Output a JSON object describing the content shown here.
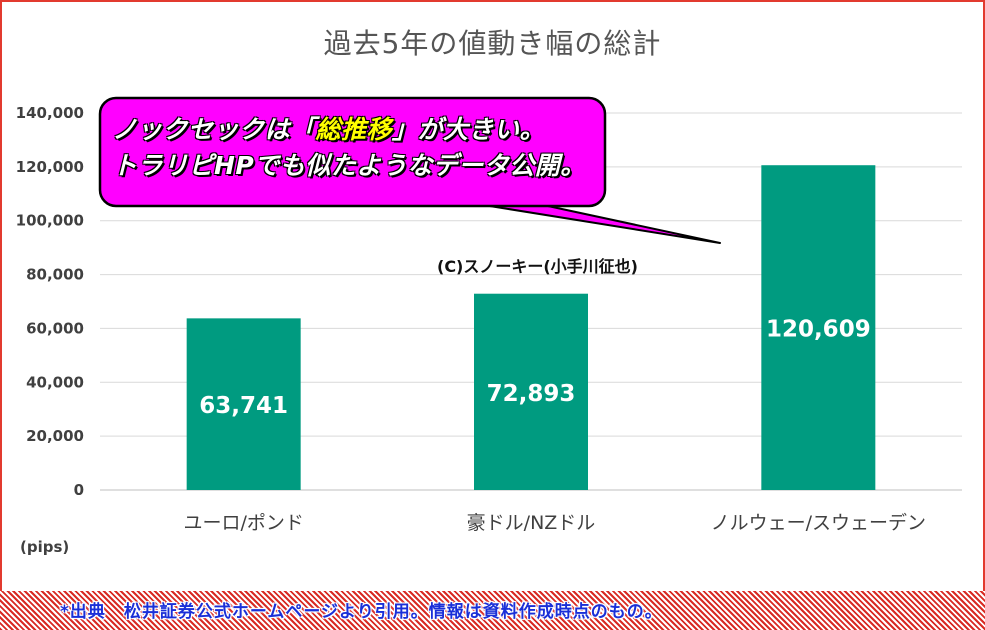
{
  "chart_data": {
    "type": "bar",
    "title": "過去5年の値動き幅の総計",
    "categories": [
      "ユーロ/ポンド",
      "豪ドル/NZドル",
      "ノルウェー/スウェーデン"
    ],
    "values": [
      63741,
      72893,
      120609
    ],
    "value_labels": [
      "63,741",
      "72,893",
      "120,609"
    ],
    "ylim": [
      0,
      140000
    ],
    "yticks": [
      0,
      20000,
      40000,
      60000,
      80000,
      100000,
      120000,
      140000
    ],
    "ytick_labels": [
      "0",
      "20,000",
      "40,000",
      "60,000",
      "80,000",
      "100,000",
      "120,000",
      "140,000"
    ],
    "ylabel": "(pips)",
    "grid": true,
    "bar_color": "#009b80"
  },
  "annotation": {
    "line1_pre": "ノックセックは「",
    "line1_highlight": "総推移",
    "line1_post": "」が大きい。",
    "line2": "トラリピHPでも似たようなデータ公開。",
    "bubble_color": "#ff00ff",
    "highlight_color": "#ffff00"
  },
  "credit": "(C)スノーキー(小手川征也)",
  "footer": "*出典　松井証券公式ホームページより引用。情報は資料作成時点のもの。",
  "colors": {
    "frame": "#e23a2f",
    "footer_text": "#1a2fd8"
  }
}
